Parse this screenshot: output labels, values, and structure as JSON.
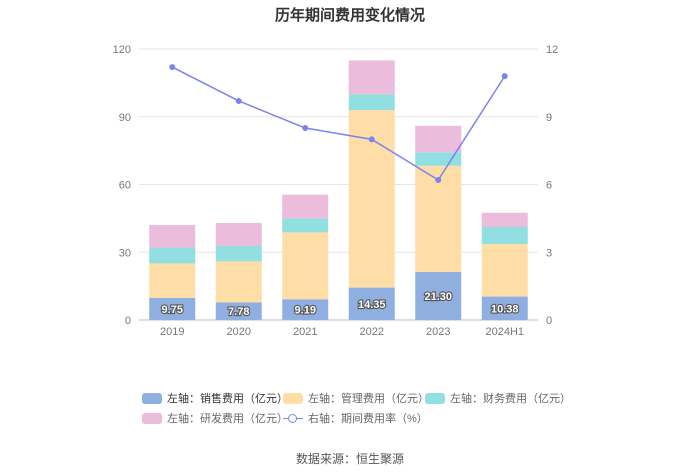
{
  "title": "历年期间费用变化情况",
  "source": "数据来源：恒生聚源",
  "chart_data": {
    "type": "bar",
    "stacked": true,
    "categories": [
      "2019",
      "2020",
      "2021",
      "2022",
      "2023",
      "2024H1"
    ],
    "series": [
      {
        "name": "左轴：销售费用（亿元）",
        "axis": "left",
        "color": "#8eafe0",
        "values": [
          9.75,
          7.78,
          9.19,
          14.35,
          21.3,
          10.38
        ],
        "labels": [
          "9.75",
          "7.78",
          "9.19",
          "14.35",
          "21.30",
          "10.38"
        ]
      },
      {
        "name": "左轴：管理费用（亿元）",
        "axis": "left",
        "color": "#fedea6",
        "values": [
          15.3,
          18.2,
          29.6,
          78.6,
          47.0,
          23.3
        ]
      },
      {
        "name": "左轴：财务费用（亿元）",
        "axis": "left",
        "color": "#91dfe0",
        "values": [
          7.0,
          6.8,
          6.2,
          7.0,
          6.0,
          7.5
        ]
      },
      {
        "name": "左轴：研发费用（亿元）",
        "axis": "left",
        "color": "#ebbcdc",
        "values": [
          10.0,
          10.2,
          10.5,
          15.0,
          11.7,
          6.3
        ]
      }
    ],
    "line_series": {
      "name": "右轴：期间费用率（%）",
      "axis": "right",
      "color": "#7b83ee",
      "values": [
        11.2,
        9.7,
        8.5,
        8.0,
        6.2,
        10.8
      ]
    },
    "y_left": {
      "min": 0,
      "max": 120,
      "ticks": [
        "0",
        "30",
        "60",
        "90",
        "120"
      ]
    },
    "y_right": {
      "min": 0,
      "max": 12,
      "ticks": [
        "0",
        "3",
        "6",
        "9",
        "12"
      ]
    }
  }
}
